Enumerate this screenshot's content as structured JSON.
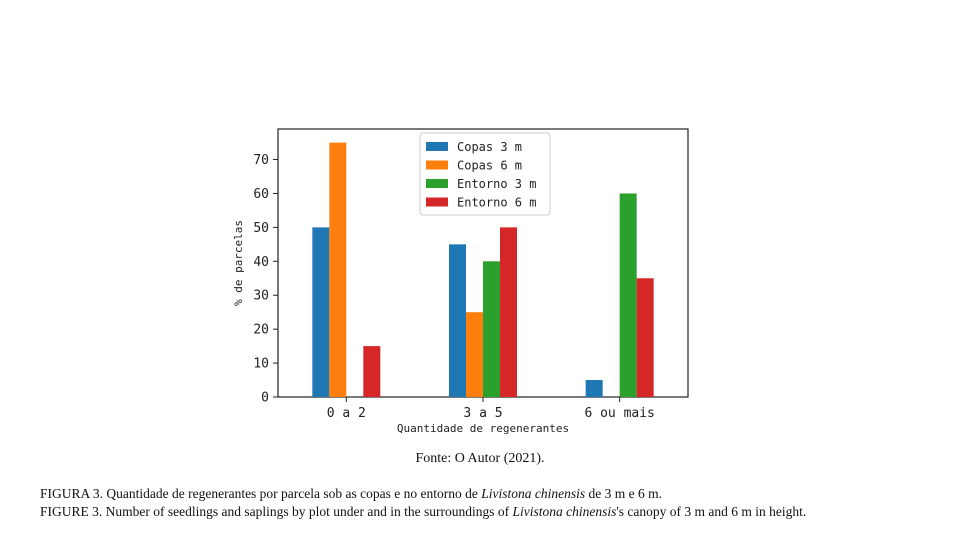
{
  "chart_data": {
    "type": "bar",
    "categories": [
      "0 a 2",
      "3 a 5",
      "6 ou mais"
    ],
    "series": [
      {
        "name": "Copas 3 m",
        "values": [
          50,
          45,
          5
        ],
        "color": "#1f77b4"
      },
      {
        "name": "Copas 6 m",
        "values": [
          75,
          25,
          0
        ],
        "color": "#ff7f0e"
      },
      {
        "name": "Entorno 3 m",
        "values": [
          0,
          40,
          60
        ],
        "color": "#2ca02c"
      },
      {
        "name": "Entorno 6 m",
        "values": [
          15,
          50,
          35
        ],
        "color": "#d62728"
      }
    ],
    "xlabel": "Quantidade de regenerantes",
    "ylabel": "% de parcelas",
    "ylim": [
      0,
      79
    ],
    "yticks": [
      0,
      10,
      20,
      30,
      40,
      50,
      60,
      70
    ],
    "grid": false,
    "legend_position": "top-center"
  },
  "source": "Fonte: O Autor (2021).",
  "caption_pt": {
    "before": "FIGURA 3. Quantidade de regenerantes por parcela sob as copas e no entorno de ",
    "species": "Livistona chinensis",
    "after": " de 3 m e 6 m."
  },
  "caption_en": {
    "before": "FIGURE 3. Number of seedlings and saplings by plot under and in the surroundings of ",
    "species": "Livistona chinensis",
    "after": "'s canopy of 3 m and 6 m in height."
  }
}
